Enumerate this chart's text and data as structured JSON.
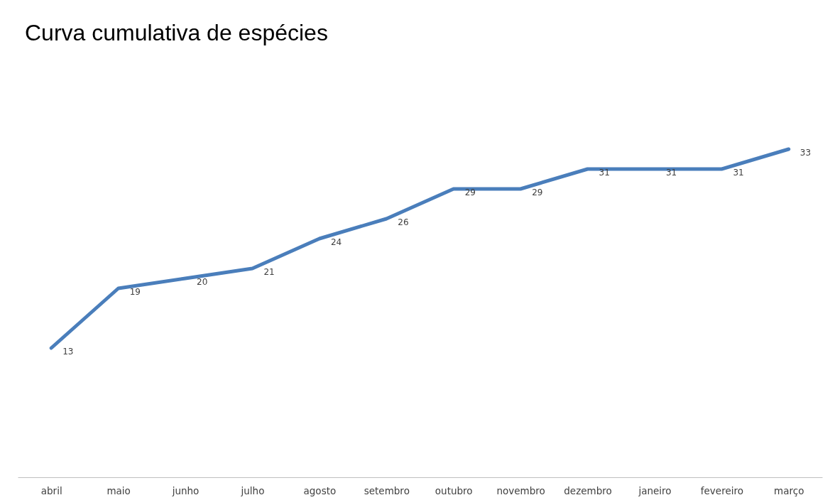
{
  "chart_data": {
    "type": "line",
    "title": "Curva cumulativa de espécies",
    "categories": [
      "abril",
      "maio",
      "junho",
      "julho",
      "agosto",
      "setembro",
      "outubro",
      "novembro",
      "dezembro",
      "janeiro",
      "fevereiro",
      "março"
    ],
    "values": [
      13,
      19,
      20,
      21,
      24,
      26,
      29,
      29,
      31,
      31,
      31,
      33
    ],
    "color": "#4a7ebb",
    "data_labels": true,
    "tick_labels": "x",
    "grid": false
  }
}
